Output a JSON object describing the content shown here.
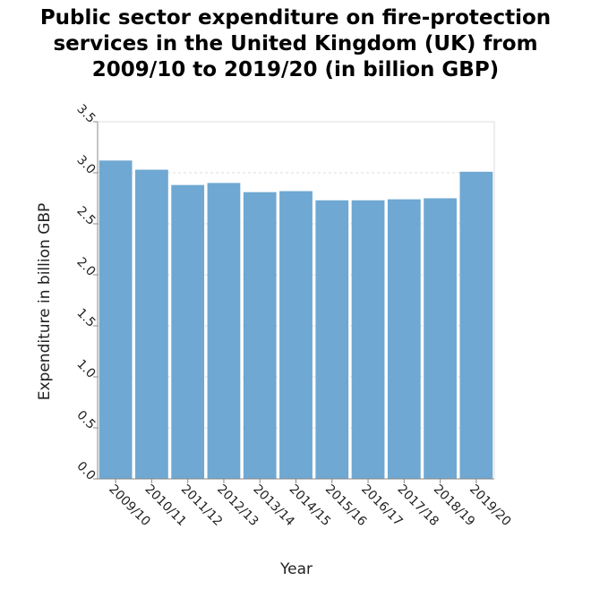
{
  "chart_data": {
    "type": "bar",
    "title_lines": [
      "Public sector expenditure on fire-protection",
      "services in the United Kingdom (UK) from",
      "2009/10 to 2019/20 (in billion GBP)"
    ],
    "xlabel": "Year",
    "ylabel": "Expenditure in billion GBP",
    "categories": [
      "2009/10",
      "2010/11",
      "2011/12",
      "2012/13",
      "2013/14",
      "2014/15",
      "2015/16",
      "2016/17",
      "2017/18",
      "2018/19",
      "2019/20"
    ],
    "values": [
      3.12,
      3.03,
      2.88,
      2.9,
      2.81,
      2.82,
      2.73,
      2.73,
      2.74,
      2.75,
      3.01
    ],
    "yticks": [
      "0.0",
      "0.5",
      "1.0",
      "1.5",
      "2.0",
      "2.5",
      "3.0",
      "3.5"
    ],
    "ylim": [
      0,
      3.5
    ],
    "grid": true,
    "bar_color": "#6fa8d2"
  }
}
